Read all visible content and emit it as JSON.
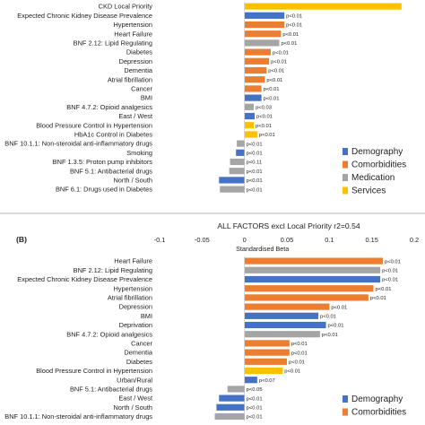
{
  "colors": {
    "Demography": "#4472c4",
    "Comorbidities": "#ed7d31",
    "Medication": "#a5a5a5",
    "Services": "#ffc000"
  },
  "chart_data": [
    {
      "type": "bar",
      "orientation": "horizontal",
      "panel_label": "",
      "title": "",
      "xlabel": "",
      "xlim": [
        -0.1,
        0.2
      ],
      "legend": {
        "placement": "bottom-right",
        "entries": [
          "Demography",
          "Comorbidities",
          "Medication",
          "Services"
        ]
      },
      "bars": [
        {
          "label": "CKD Local Priority",
          "value": 0.185,
          "group": "Services",
          "p": ""
        },
        {
          "label": "Expected Chronic Kidney Disease Prevalence",
          "value": 0.047,
          "group": "Demography",
          "p": "p<0.01"
        },
        {
          "label": "Hypertension",
          "value": 0.047,
          "group": "Comorbidities",
          "p": "p<0.01"
        },
        {
          "label": "Heart Failure",
          "value": 0.043,
          "group": "Comorbidities",
          "p": "p<0.01"
        },
        {
          "label": "BNF 2.12: Lipid Regulating",
          "value": 0.041,
          "group": "Medication",
          "p": "p<0.01"
        },
        {
          "label": "Diabetes",
          "value": 0.031,
          "group": "Comorbidities",
          "p": "p<0.01"
        },
        {
          "label": "Depression",
          "value": 0.029,
          "group": "Comorbidities",
          "p": "p<0.01"
        },
        {
          "label": "Dementia",
          "value": 0.026,
          "group": "Comorbidities",
          "p": "p<0.01"
        },
        {
          "label": "Atrial fibrillation",
          "value": 0.024,
          "group": "Comorbidities",
          "p": "p<0.01"
        },
        {
          "label": "Cancer",
          "value": 0.02,
          "group": "Comorbidities",
          "p": "p<0.01"
        },
        {
          "label": "BMI",
          "value": 0.02,
          "group": "Demography",
          "p": "p<0.01"
        },
        {
          "label": "BNF 4.7.2: Opioid analgesics",
          "value": 0.011,
          "group": "Medication",
          "p": "p<0.03"
        },
        {
          "label": "East / West",
          "value": 0.012,
          "group": "Demography",
          "p": "p<0.01"
        },
        {
          "label": "Blood Pressure Control in Hypertension",
          "value": 0.011,
          "group": "Services",
          "p": "p<0.01"
        },
        {
          "label": "HbA1c Control in Diabetes",
          "value": 0.015,
          "group": "Services",
          "p": "p<0.01"
        },
        {
          "label": "BNF 10.1.1: Non-steroidal anti-inflammatory drugs",
          "value": -0.009,
          "group": "Medication",
          "p": "p<0.01"
        },
        {
          "label": "Smoking",
          "value": -0.01,
          "group": "Demography",
          "p": "p<0.01"
        },
        {
          "label": "BNF 1.3.5: Proton pump inhibitors",
          "value": -0.017,
          "group": "Medication",
          "p": "p<0.11"
        },
        {
          "label": "BNF 5.1: Antibacterial drugs",
          "value": -0.018,
          "group": "Medication",
          "p": "p<0.01"
        },
        {
          "label": "North / South",
          "value": -0.03,
          "group": "Demography",
          "p": "p<0.01"
        },
        {
          "label": "BNF 6.1: Drugs used in Diabetes",
          "value": -0.029,
          "group": "Medication",
          "p": "p<0.01"
        }
      ]
    },
    {
      "type": "bar",
      "orientation": "horizontal",
      "panel_label": "(B)",
      "title": "ALL FACTORS excl Local Priority r2=0.54",
      "xlabel": "Standardised Beta",
      "xlim": [
        -0.1,
        0.2
      ],
      "xticks": [
        -0.1,
        -0.05,
        0,
        0.05,
        0.1,
        0.15,
        0.2
      ],
      "xtick_labels": [
        "-0.1",
        "-0.05",
        "0",
        "0.05",
        "0.1",
        "0.15",
        "0.2"
      ],
      "legend": {
        "placement": "bottom-right",
        "entries": [
          "Demography",
          "Comorbidities"
        ]
      },
      "bars": [
        {
          "label": "Heart Failure",
          "value": 0.163,
          "group": "Comorbidities",
          "p": "p<0.01"
        },
        {
          "label": "BNF 2.12: Lipid Regulating",
          "value": 0.16,
          "group": "Medication",
          "p": "p<0.01"
        },
        {
          "label": "Expected Chronic Kidney Disease Prevalence",
          "value": 0.16,
          "group": "Demography",
          "p": "p<0.01"
        },
        {
          "label": "Hypertension",
          "value": 0.152,
          "group": "Comorbidities",
          "p": "p<0.01"
        },
        {
          "label": "Atrial fibrillation",
          "value": 0.146,
          "group": "Comorbidities",
          "p": "p<0.01"
        },
        {
          "label": "Depression",
          "value": 0.1,
          "group": "Comorbidities",
          "p": "p<0.01"
        },
        {
          "label": "BMI",
          "value": 0.087,
          "group": "Demography",
          "p": "p<0.01"
        },
        {
          "label": "Deprivation",
          "value": 0.096,
          "group": "Demography",
          "p": "p<0.01"
        },
        {
          "label": "BNF 4.7.2: Opioid analgesics",
          "value": 0.089,
          "group": "Medication",
          "p": "p<0.01"
        },
        {
          "label": "Cancer",
          "value": 0.053,
          "group": "Comorbidities",
          "p": "p<0.01"
        },
        {
          "label": "Dementia",
          "value": 0.053,
          "group": "Comorbidities",
          "p": "p<0.01"
        },
        {
          "label": "Diabetes",
          "value": 0.05,
          "group": "Comorbidities",
          "p": "p<0.01"
        },
        {
          "label": "Blood Pressure Control in Hypertension",
          "value": 0.045,
          "group": "Services",
          "p": "p<0.01"
        },
        {
          "label": "Urban/Rural",
          "value": 0.015,
          "group": "Demography",
          "p": "p<0.07"
        },
        {
          "label": "BNF 5.1: Antibacterial drugs",
          "value": -0.02,
          "group": "Medication",
          "p": "p<0.05"
        },
        {
          "label": "East / West",
          "value": -0.03,
          "group": "Demography",
          "p": "p<0.01"
        },
        {
          "label": "North / South",
          "value": -0.033,
          "group": "Demography",
          "p": "p<0.01"
        },
        {
          "label": "BNF 10.1.1: Non-steroidal anti-inflammatory drugs",
          "value": -0.035,
          "group": "Medication",
          "p": "p<0.01"
        }
      ]
    }
  ]
}
